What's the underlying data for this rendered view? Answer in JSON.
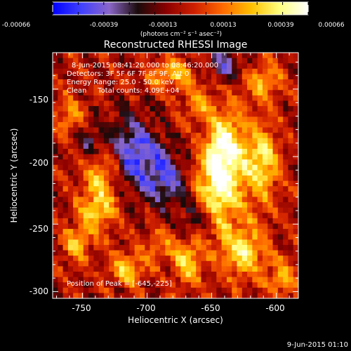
{
  "colorbar": {
    "ticks": [
      "-0.00066",
      "-0.00039",
      "-0.00013",
      "0.00013",
      "0.00039",
      "0.00066"
    ],
    "units": "(photons cm⁻² s⁻¹ asec⁻²)",
    "colormap": [
      "#0000ff",
      "#4040ff",
      "#8a66c8",
      "#1a0a0a",
      "#8b0000",
      "#d02000",
      "#ff6a00",
      "#ffc000",
      "#ffff80",
      "#ffffff"
    ]
  },
  "title": "Reconstructed RHESSI Image",
  "info_lines": [
    "8-Jun-2015 08:41:20.000 to 08:46:20.000",
    "Detectors: 3F 5F 6F 7F 8F 9F, Att 0",
    "Energy Range: 25.0 - 50.0 keV",
    "Clean     Total counts: 4.09E+04"
  ],
  "peak_text": "Position of Peak = [-645,-225]",
  "timestamp": "9-Jun-2015 01:10",
  "chart_data": {
    "type": "heatmap",
    "title": "Reconstructed RHESSI Image",
    "xlabel": "Heliocentric X (arcsec)",
    "ylabel": "Heliocentric Y (arcsec)",
    "xlim": [
      -773,
      -583
    ],
    "ylim": [
      -305,
      -123
    ],
    "xticks": [
      -750,
      -700,
      -650,
      -600
    ],
    "yticks": [
      -150,
      -200,
      -250,
      -300
    ],
    "zlim": [
      -0.00066,
      0.00066
    ],
    "peak": [
      -645,
      -225
    ],
    "grid_cols": 48,
    "grid_rows": 46,
    "blobs": [
      {
        "x": -645,
        "y": -225,
        "sx": 12,
        "sy": 22,
        "amp": 1.0
      },
      {
        "x": -640,
        "y": -190,
        "sx": 10,
        "sy": 18,
        "amp": 0.85
      },
      {
        "x": -612,
        "y": -205,
        "sx": 10,
        "sy": 20,
        "amp": 0.8
      },
      {
        "x": -625,
        "y": -270,
        "sx": 12,
        "sy": 14,
        "amp": 0.75
      },
      {
        "x": -668,
        "y": -278,
        "sx": 8,
        "sy": 12,
        "amp": 0.7
      },
      {
        "x": -732,
        "y": -210,
        "sx": 12,
        "sy": 16,
        "amp": 0.7
      },
      {
        "x": -738,
        "y": -240,
        "sx": 10,
        "sy": 12,
        "amp": 0.6
      },
      {
        "x": -715,
        "y": -283,
        "sx": 10,
        "sy": 8,
        "amp": 0.65
      },
      {
        "x": -755,
        "y": -265,
        "sx": 8,
        "sy": 10,
        "amp": 0.55
      },
      {
        "x": -680,
        "y": -140,
        "sx": 14,
        "sy": 8,
        "amp": 0.6
      },
      {
        "x": -610,
        "y": -145,
        "sx": 10,
        "sy": 10,
        "amp": 0.55
      },
      {
        "x": -660,
        "y": -160,
        "sx": 8,
        "sy": 8,
        "amp": 0.45
      },
      {
        "x": -760,
        "y": -170,
        "sx": 8,
        "sy": 10,
        "amp": 0.45
      },
      {
        "x": -690,
        "y": -265,
        "sx": 8,
        "sy": 8,
        "amp": 0.4
      },
      {
        "x": -595,
        "y": -290,
        "sx": 8,
        "sy": 10,
        "amp": 0.5
      }
    ],
    "negative_blobs": [
      {
        "x": -712,
        "y": -200,
        "sx": 14,
        "sy": 20,
        "amp": -0.9
      },
      {
        "x": -685,
        "y": -215,
        "sx": 10,
        "sy": 14,
        "amp": -0.7
      },
      {
        "x": -640,
        "y": -133,
        "sx": 10,
        "sy": 8,
        "amp": -0.6
      },
      {
        "x": -660,
        "y": -245,
        "sx": 10,
        "sy": 10,
        "amp": -0.5
      },
      {
        "x": -745,
        "y": -190,
        "sx": 8,
        "sy": 10,
        "amp": -0.5
      }
    ]
  }
}
